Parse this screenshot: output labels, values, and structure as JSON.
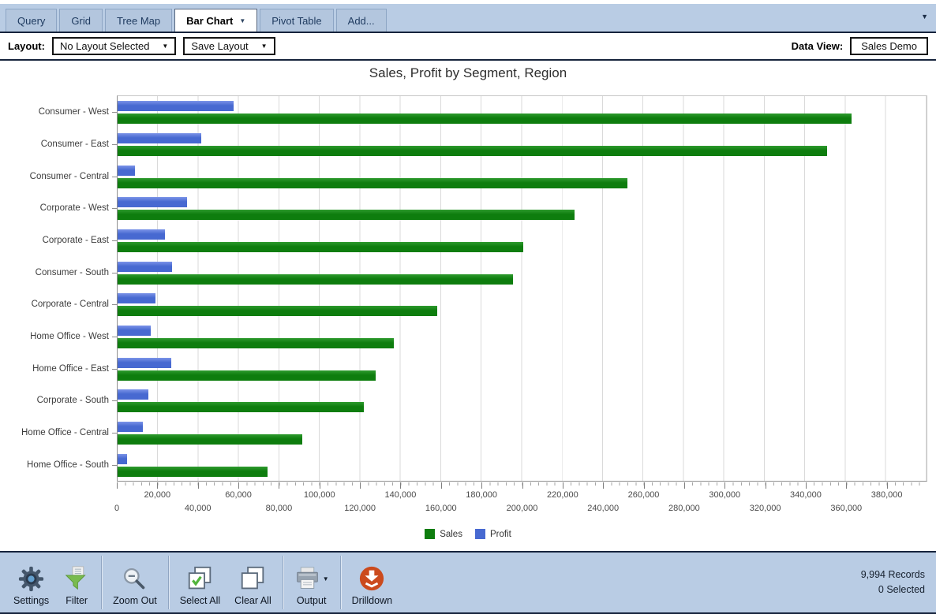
{
  "tabs": [
    {
      "label": "Query",
      "active": false,
      "caret": false
    },
    {
      "label": "Grid",
      "active": false,
      "caret": false
    },
    {
      "label": "Tree Map",
      "active": false,
      "caret": false
    },
    {
      "label": "Bar Chart",
      "active": true,
      "caret": true
    },
    {
      "label": "Pivot Table",
      "active": false,
      "caret": false
    },
    {
      "label": "Add...",
      "active": false,
      "caret": false
    }
  ],
  "layout_bar": {
    "layout_label": "Layout:",
    "layout_select_value": "No Layout Selected",
    "save_layout_label": "Save Layout",
    "data_view_label": "Data View:",
    "data_view_value": "Sales Demo"
  },
  "chart_data": {
    "type": "bar",
    "orientation": "horizontal",
    "title": "Sales, Profit by Segment, Region",
    "categories": [
      "Consumer - West",
      "Consumer - East",
      "Consumer - Central",
      "Corporate - West",
      "Corporate - East",
      "Consumer - South",
      "Corporate - Central",
      "Home Office - West",
      "Home Office - East",
      "Corporate - South",
      "Home Office - Central",
      "Home Office - South"
    ],
    "series": [
      {
        "name": "Sales",
        "color": "#0e7d0e",
        "color_light": "#2f9b2f",
        "values": [
          362900,
          350900,
          252000,
          225900,
          200400,
          195600,
          158000,
          136700,
          127500,
          121900,
          91200,
          74300
        ]
      },
      {
        "name": "Profit",
        "color": "#4769d1",
        "color_light": "#7b93e8",
        "values": [
          57500,
          41200,
          8600,
          34400,
          23600,
          26900,
          18700,
          16500,
          26700,
          15200,
          12400,
          4600
        ]
      }
    ],
    "bar_order_top_to_bottom": [
      "Profit",
      "Sales"
    ],
    "xlim": [
      0,
      400000
    ],
    "x_ticks": [
      0,
      20000,
      40000,
      60000,
      80000,
      100000,
      120000,
      140000,
      160000,
      180000,
      200000,
      220000,
      240000,
      260000,
      280000,
      300000,
      320000,
      340000,
      360000,
      380000
    ],
    "x_tick_labels": [
      "0",
      "20,000",
      "40,000",
      "60,000",
      "80,000",
      "100,000",
      "120,000",
      "140,000",
      "160,000",
      "180,000",
      "200,000",
      "220,000",
      "240,000",
      "260,000",
      "280,000",
      "300,000",
      "320,000",
      "340,000",
      "360,000",
      "380,000"
    ],
    "gridline_interval": 20000,
    "minor_tick_interval": 4000,
    "grid": true,
    "legend_position": "bottom"
  },
  "toolbar": {
    "items": [
      {
        "label": "Settings",
        "icon": "settings",
        "group": 1,
        "caret": false
      },
      {
        "label": "Filter",
        "icon": "filter",
        "group": 1,
        "caret": false
      },
      {
        "label": "Zoom Out",
        "icon": "zoom-out",
        "group": 2,
        "caret": false
      },
      {
        "label": "Select All",
        "icon": "select-all",
        "group": 3,
        "caret": false
      },
      {
        "label": "Clear All",
        "icon": "clear-all",
        "group": 3,
        "caret": false
      },
      {
        "label": "Output",
        "icon": "output",
        "group": 4,
        "caret": true
      },
      {
        "label": "Drilldown",
        "icon": "drilldown",
        "group": 5,
        "caret": false
      }
    ],
    "records_text": "9,994 Records",
    "selected_text": "0 Selected"
  },
  "colors": {
    "chrome_bg": "#b9cce4",
    "divider": "#16233c",
    "sales_green": "#0e7d0e",
    "profit_blue": "#4769d1",
    "drilldown_orange": "#cb4a1d"
  }
}
